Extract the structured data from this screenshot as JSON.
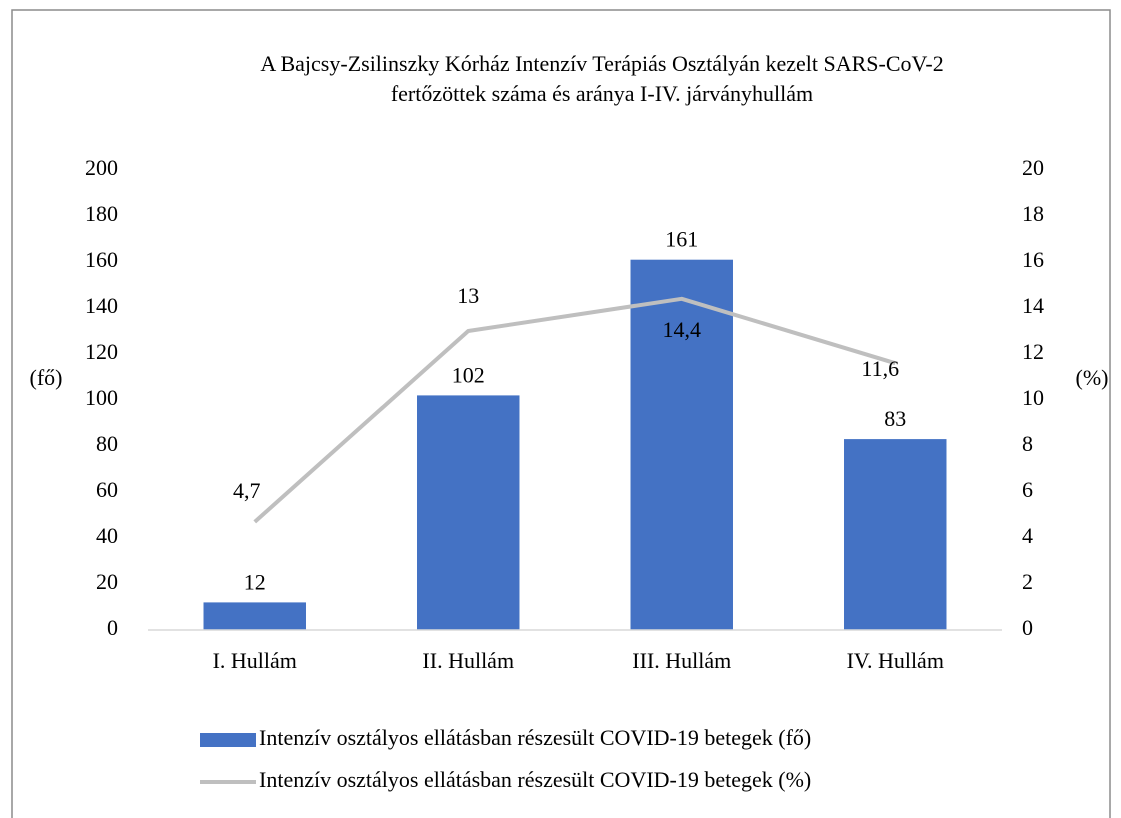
{
  "chart_data": {
    "type": "bar",
    "title": [
      "A Bajcsy-Zsilinszky Kórház Intenzív Terápiás Osztályán kezelt SARS-CoV-2",
      "fertőzöttek száma és aránya  I-IV. járványhullám"
    ],
    "categories": [
      "I. Hullám",
      "II. Hullám",
      "III. Hullám",
      "IV. Hullám"
    ],
    "series": [
      {
        "name": "Intenzív osztályos ellátásban részesült COVID-19 betegek (fő)",
        "type": "bar",
        "color": "#4472c4",
        "values": [
          12,
          102,
          161,
          83
        ]
      },
      {
        "name": "Intenzív osztályos ellátásban részesült COVID-19 betegek (%)",
        "type": "line",
        "axis": "y2",
        "color": "#bfbfbf",
        "values": [
          4.7,
          13,
          14.4,
          11.6
        ],
        "value_labels": [
          "4,7",
          "13",
          "14,4",
          "11,6"
        ]
      }
    ],
    "ylabel": "(fő)",
    "y2label": "(%)",
    "ylim": [
      0,
      200
    ],
    "yticks": [
      0,
      20,
      40,
      60,
      80,
      100,
      120,
      140,
      160,
      180,
      200
    ],
    "y2lim": [
      0,
      20
    ],
    "y2ticks": [
      0,
      2,
      4,
      6,
      8,
      10,
      12,
      14,
      16,
      18,
      20
    ]
  }
}
